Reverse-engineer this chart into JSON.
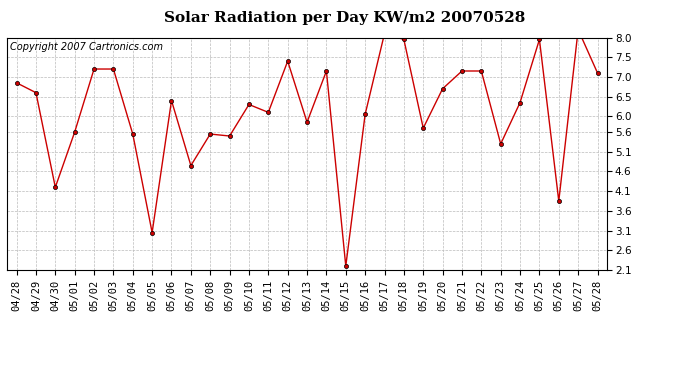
{
  "title": "Solar Radiation per Day KW/m2 20070528",
  "copyright": "Copyright 2007 Cartronics.com",
  "dates": [
    "04/28",
    "04/29",
    "04/30",
    "05/01",
    "05/02",
    "05/03",
    "05/04",
    "05/05",
    "05/06",
    "05/07",
    "05/08",
    "05/09",
    "05/10",
    "05/11",
    "05/12",
    "05/13",
    "05/14",
    "05/15",
    "05/16",
    "05/17",
    "05/18",
    "05/19",
    "05/20",
    "05/21",
    "05/22",
    "05/23",
    "05/24",
    "05/25",
    "05/26",
    "05/27",
    "05/28"
  ],
  "values": [
    6.85,
    6.6,
    4.2,
    5.6,
    7.2,
    7.2,
    5.55,
    3.05,
    6.4,
    4.75,
    5.55,
    5.5,
    6.3,
    6.1,
    7.4,
    5.85,
    7.15,
    2.2,
    6.05,
    8.1,
    7.95,
    5.7,
    6.7,
    7.15,
    7.15,
    5.3,
    6.35,
    7.95,
    3.85,
    8.2,
    7.1
  ],
  "line_color": "#cc0000",
  "marker": "o",
  "marker_size": 3,
  "bg_color": "#ffffff",
  "plot_bg_color": "#ffffff",
  "grid_color": "#bbbbbb",
  "ylim_min": 2.1,
  "ylim_max": 8.0,
  "yticks": [
    2.1,
    2.6,
    3.1,
    3.6,
    4.1,
    4.6,
    5.1,
    5.6,
    6.0,
    6.5,
    7.0,
    7.5,
    8.0
  ],
  "title_fontsize": 11,
  "copyright_fontsize": 7,
  "tick_fontsize": 7.5
}
